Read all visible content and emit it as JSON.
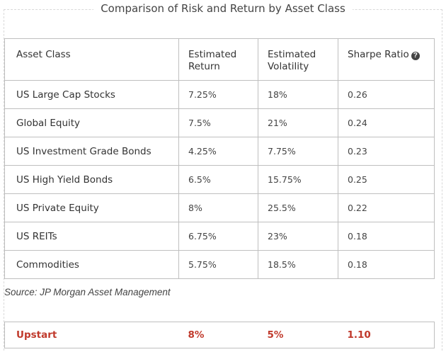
{
  "title": "Comparison of Risk and Return by Asset Class",
  "headers": {
    "asset_class": "Asset Class",
    "return_line1": "Estimated",
    "return_line2": "Return",
    "volatility_line1": "Estimated",
    "volatility_line2": "Volatility",
    "sharpe": "Sharpe Ratio",
    "help_icon": "question-circle"
  },
  "rows": [
    {
      "asset": "US Large Cap Stocks",
      "return": "7.25%",
      "volatility": "18%",
      "sharpe": "0.26"
    },
    {
      "asset": "Global Equity",
      "return": "7.5%",
      "volatility": "21%",
      "sharpe": "0.24"
    },
    {
      "asset": "US Investment Grade Bonds",
      "return": "4.25%",
      "volatility": "7.75%",
      "sharpe": "0.23"
    },
    {
      "asset": "US High Yield Bonds",
      "return": "6.5%",
      "volatility": "15.75%",
      "sharpe": "0.25"
    },
    {
      "asset": "US Private Equity",
      "return": "8%",
      "volatility": "25.5%",
      "sharpe": "0.22"
    },
    {
      "asset": "US REITs",
      "return": "6.75%",
      "volatility": "23%",
      "sharpe": "0.18"
    },
    {
      "asset": "Commodities",
      "return": "5.75%",
      "volatility": "18.5%",
      "sharpe": "0.18"
    }
  ],
  "source": "Source: JP Morgan Asset Management",
  "highlight": {
    "asset": "Upstart",
    "return": "8%",
    "volatility": "5%",
    "sharpe": "1.10"
  },
  "colors": {
    "highlight_text": "#c0392b",
    "border": "#bfbfbf"
  }
}
